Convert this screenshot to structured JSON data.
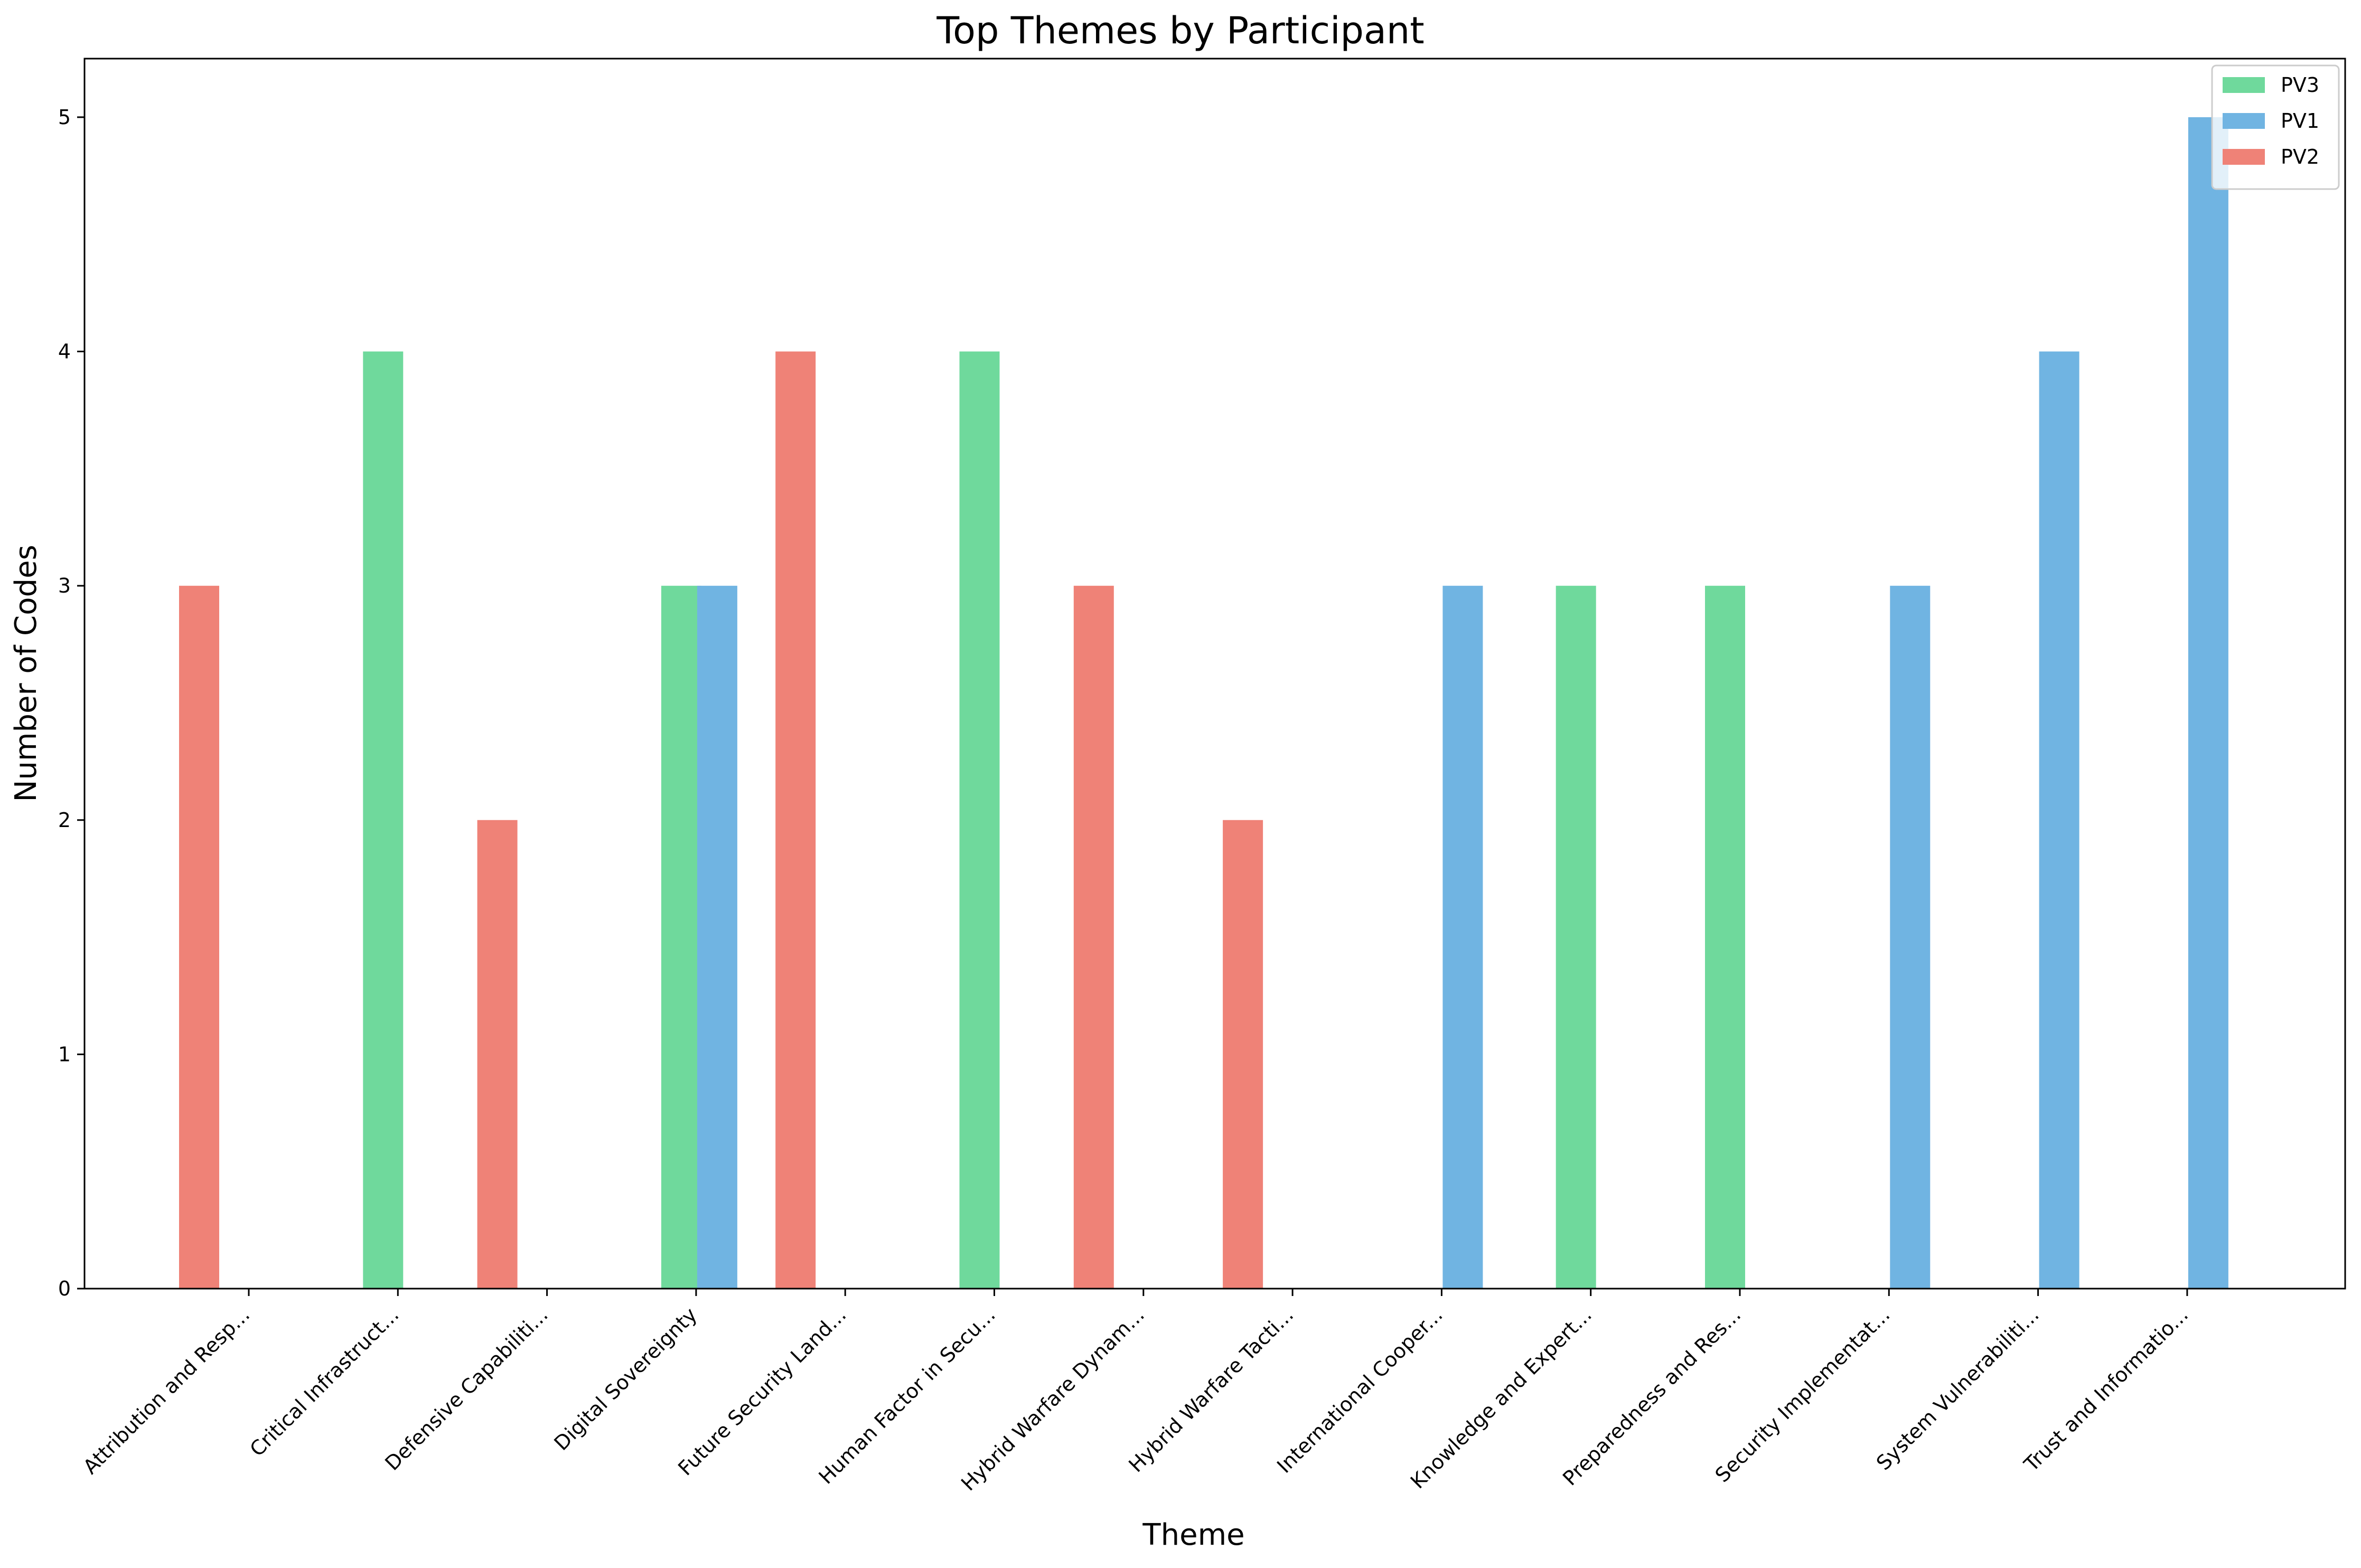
{
  "chart_data": {
    "type": "bar",
    "title": "Top Themes by Participant",
    "xlabel": "Theme",
    "ylabel": "Number of Codes",
    "ylim": [
      0,
      5.25
    ],
    "yticks": [
      0,
      1,
      2,
      3,
      4,
      5
    ],
    "grid": false,
    "legend_position": "top-right",
    "categories": [
      "Attribution and Resp...",
      "Critical Infrastruct...",
      "Defensive Capabiliti...",
      "Digital Sovereignty",
      "Future Security Land...",
      "Human Factor in Secu...",
      "Hybrid Warfare Dynam...",
      "Hybrid Warfare Tacti...",
      "International Cooper...",
      "Knowledge and Expert...",
      "Preparedness and Res...",
      "Security Implementat...",
      "System Vulnerabiliti...",
      "Trust and Informatio..."
    ],
    "series": [
      {
        "name": "PV3",
        "color": "#6fd99c",
        "values": [
          null,
          4,
          null,
          3,
          null,
          4,
          null,
          null,
          null,
          3,
          3,
          null,
          null,
          null
        ]
      },
      {
        "name": "PV1",
        "color": "#70b4e2",
        "values": [
          null,
          null,
          null,
          3,
          null,
          null,
          null,
          null,
          3,
          null,
          null,
          3,
          4,
          5
        ]
      },
      {
        "name": "PV2",
        "color": "#ef8277",
        "values": [
          3,
          null,
          2,
          null,
          4,
          null,
          3,
          2,
          null,
          null,
          null,
          null,
          null,
          null
        ]
      }
    ]
  }
}
